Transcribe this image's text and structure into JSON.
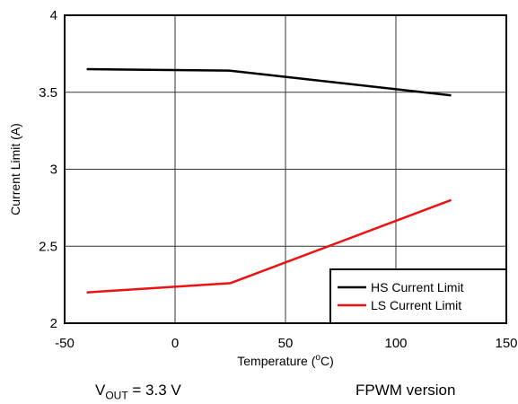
{
  "chart_data": {
    "type": "line",
    "title": "",
    "xlabel_main": "Temperature (",
    "xlabel_sup": "o",
    "xlabel_end": "C)",
    "ylabel": "Current Limit (A)",
    "xlim": [
      -50,
      150
    ],
    "ylim": [
      2,
      4
    ],
    "x_ticks": [
      -50,
      0,
      50,
      100,
      150
    ],
    "y_ticks": [
      2,
      2.5,
      3,
      3.5,
      4
    ],
    "y_tick_labels": [
      "2",
      "2.5",
      "3",
      "3.5",
      "4"
    ],
    "grid": true,
    "legend_position": "bottom-right",
    "series": [
      {
        "name": "HS Current Limit",
        "color": "#000000",
        "x": [
          -40,
          25,
          125
        ],
        "y": [
          3.65,
          3.64,
          3.48
        ]
      },
      {
        "name": "LS Current Limit",
        "color": "#ee1111",
        "x": [
          -40,
          25,
          125
        ],
        "y": [
          2.2,
          2.26,
          2.8
        ]
      }
    ]
  },
  "conditions": {
    "vout_symbol": "V",
    "vout_sub": "OUT",
    "vout_value": " = 3.3 V",
    "version": "FPWM version"
  }
}
